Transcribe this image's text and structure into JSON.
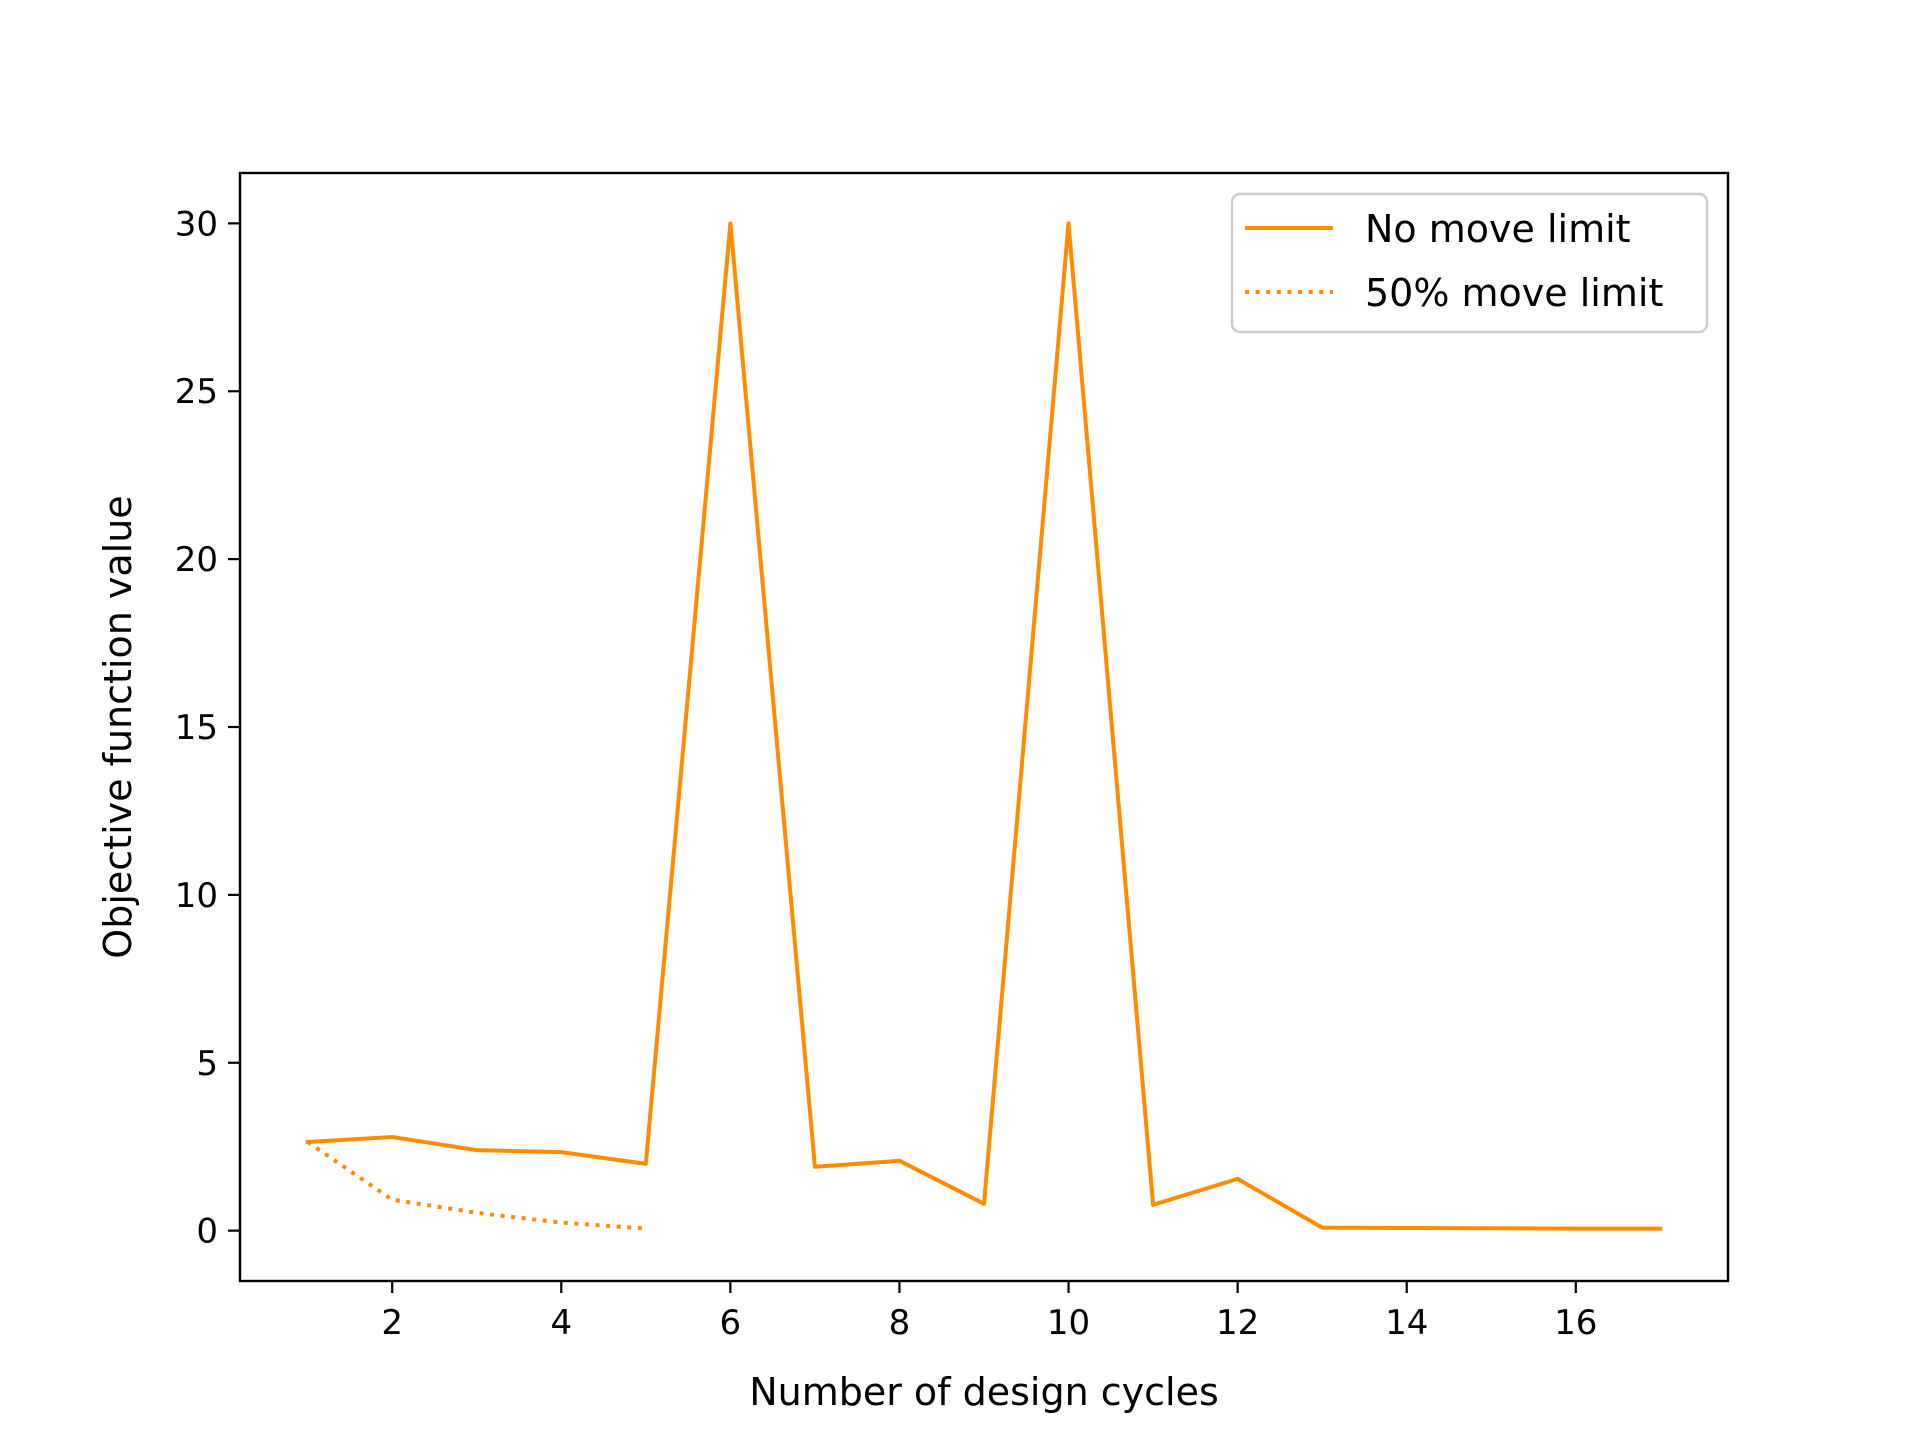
{
  "chart_data": {
    "type": "line",
    "title": "",
    "xlabel": "Number of design cycles",
    "ylabel": "Objective function value",
    "xlim": [
      0.2,
      17.8
    ],
    "ylim": [
      -1.5,
      31.5
    ],
    "grid": false,
    "legend_position": "upper right",
    "x_ticks": [
      2,
      4,
      6,
      8,
      10,
      12,
      14,
      16
    ],
    "y_ticks": [
      0,
      5,
      10,
      15,
      20,
      25,
      30
    ],
    "series": [
      {
        "name": "No move limit",
        "color": "#ff8c00",
        "linestyle": "solid",
        "x": [
          1,
          2,
          3,
          4,
          5,
          6,
          7,
          8,
          9,
          10,
          11,
          12,
          13,
          14,
          15,
          16,
          17
        ],
        "values": [
          2.64,
          2.79,
          2.4,
          2.34,
          1.99,
          30.0,
          1.9,
          2.08,
          0.8,
          30.0,
          0.77,
          1.54,
          0.09,
          0.08,
          0.07,
          0.06,
          0.06
        ]
      },
      {
        "name": "50% move limit",
        "color": "#ff8c00",
        "linestyle": "dotted",
        "x": [
          1,
          2,
          3,
          4,
          5
        ],
        "values": [
          2.64,
          0.92,
          0.53,
          0.24,
          0.06
        ]
      }
    ]
  }
}
